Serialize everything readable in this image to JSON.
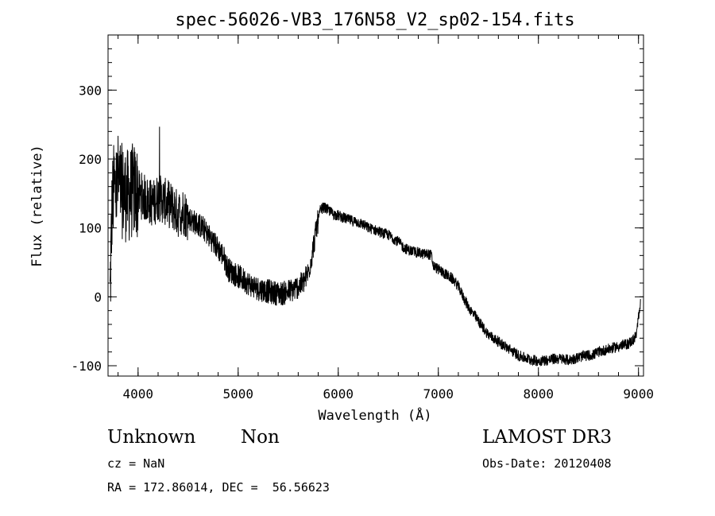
{
  "chart_data": {
    "type": "line",
    "title": "spec-56026-VB3_176N58_V2_sp02-154.fits",
    "xlabel": "Wavelength (Å)",
    "ylabel": "Flux (relative)",
    "xlim": [
      3700,
      9050
    ],
    "ylim": [
      -115,
      380
    ],
    "xticks": [
      4000,
      5000,
      6000,
      7000,
      8000,
      9000
    ],
    "yticks": [
      -100,
      0,
      100,
      200,
      300
    ],
    "x_minor_step": 200,
    "y_minor_step": 20,
    "grid": false,
    "series": [
      {
        "x": [
          3720,
          3740,
          3760,
          3780,
          3800,
          3830,
          3860,
          3900,
          3950,
          4000,
          4050,
          4100,
          4150,
          4200,
          4250,
          4300,
          4350,
          4400,
          4450,
          4500,
          4550,
          4600,
          4650,
          4700,
          4750,
          4800,
          4850,
          4900,
          4950,
          5000,
          5050,
          5100,
          5150,
          5200,
          5250,
          5300,
          5350,
          5400,
          5450,
          5500,
          5550,
          5600,
          5650,
          5700,
          5730,
          5760,
          5790,
          5820,
          5850,
          5880,
          5910,
          5950,
          6000,
          6050,
          6100,
          6150,
          6200,
          6250,
          6300,
          6350,
          6400,
          6450,
          6500,
          6550,
          6600,
          6650,
          6700,
          6750,
          6800,
          6850,
          6900,
          6930,
          6950,
          7000,
          7050,
          7100,
          7150,
          7200,
          7250,
          7300,
          7350,
          7400,
          7450,
          7500,
          7550,
          7600,
          7650,
          7700,
          7750,
          7800,
          7850,
          7900,
          7950,
          8000,
          8050,
          8100,
          8150,
          8200,
          8250,
          8300,
          8350,
          8400,
          8450,
          8500,
          8550,
          8600,
          8650,
          8700,
          8750,
          8800,
          8850,
          8900,
          8950,
          8980,
          9000,
          9020
        ],
        "y": [
          0,
          130,
          160,
          150,
          170,
          155,
          150,
          145,
          155,
          150,
          145,
          140,
          135,
          145,
          140,
          135,
          130,
          120,
          125,
          115,
          110,
          105,
          100,
          90,
          80,
          70,
          60,
          40,
          35,
          30,
          25,
          20,
          15,
          12,
          10,
          8,
          6,
          5,
          5,
          8,
          10,
          15,
          20,
          35,
          55,
          80,
          105,
          125,
          130,
          128,
          125,
          120,
          118,
          115,
          112,
          110,
          108,
          105,
          100,
          98,
          95,
          92,
          90,
          85,
          80,
          72,
          68,
          66,
          64,
          62,
          62,
          60,
          45,
          40,
          35,
          30,
          25,
          15,
          0,
          -15,
          -25,
          -35,
          -45,
          -55,
          -60,
          -65,
          -70,
          -75,
          -80,
          -85,
          -88,
          -90,
          -92,
          -93,
          -92,
          -92,
          -90,
          -90,
          -90,
          -92,
          -90,
          -88,
          -86,
          -85,
          -84,
          -80,
          -78,
          -76,
          -74,
          -72,
          -70,
          -68,
          -62,
          -55,
          -30,
          -5
        ]
      }
    ]
  },
  "info": {
    "object_class": "Unknown",
    "subclass": "Non",
    "survey": "LAMOST DR3",
    "cz": "cz = NaN",
    "obs_date": "Obs-Date: 20120408",
    "coords": "RA = 172.86014, DEC =  56.56623"
  }
}
